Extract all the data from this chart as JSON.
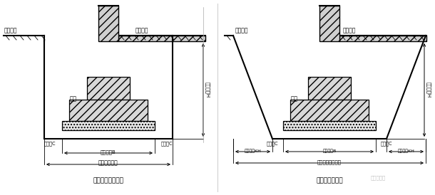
{
  "bg_color": "#ffffff",
  "left": {
    "title": "不放坡的基槽断面",
    "outdoor": "室外地坪",
    "indoor": "室内地坪",
    "foundation": "基础",
    "workC_left": "工作面C",
    "workC_right": "工作面C",
    "foundationB": "基础宽度B",
    "trench_width": "基槽开挖宽度",
    "depth_H": "开挖深度H"
  },
  "right": {
    "title": "放坡的基槽断面",
    "outdoor": "室外地坪",
    "indoor": "室内地坪",
    "foundation": "基础",
    "workC_left": "工作面C",
    "workC_right": "工作面C",
    "foundationB": "基础宽度B",
    "slope_left": "放坡宽度KH",
    "slope_right": "放坡宽度KH",
    "trench_width": "基槽基底开挖宽度",
    "depth_H": "开挖深度H"
  },
  "watermark": "建筑大家园"
}
